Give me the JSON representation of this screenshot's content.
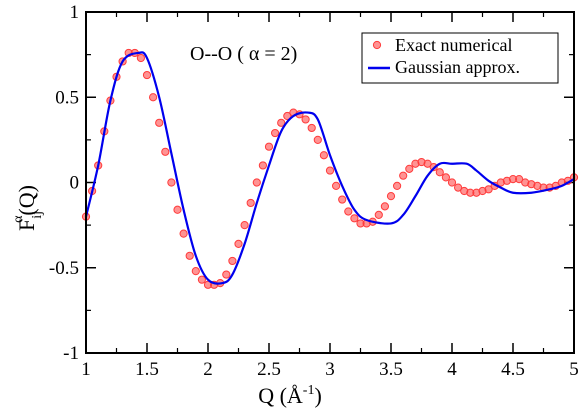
{
  "chart_data": {
    "type": "line",
    "annotation": "O--O ( α = 2)",
    "xlabel": "Q (Å-1)",
    "xlabel_parts": {
      "base": "Q (Å",
      "sup": "-1",
      "close": ")"
    },
    "ylabel": "Fijα(Q)",
    "ylabel_parts": {
      "base": "F",
      "sub": "ij",
      "sup": "α",
      "tail": "(Q)"
    },
    "xlim": [
      1,
      5
    ],
    "ylim": [
      -1,
      1
    ],
    "x_ticks": [
      1,
      1.5,
      2,
      2.5,
      3,
      3.5,
      4,
      4.5,
      5
    ],
    "x_tick_labels": [
      "1",
      "1.5",
      "2",
      "2.5",
      "3",
      "3.5",
      "4",
      "4.5",
      "5"
    ],
    "y_ticks": [
      -1,
      -0.5,
      0,
      0.5,
      1
    ],
    "y_tick_labels": [
      "-1",
      "-0.5",
      "0",
      "0.5",
      "1"
    ],
    "legend_position": "top-right",
    "colors": {
      "exact": "#ff3b3b",
      "gaussian": "#0000ee",
      "axis": "#000000"
    },
    "series": [
      {
        "name": "Exact numerical",
        "style": "markers",
        "x": [
          1.0,
          1.05,
          1.1,
          1.15,
          1.2,
          1.25,
          1.3,
          1.35,
          1.4,
          1.45,
          1.5,
          1.55,
          1.6,
          1.65,
          1.7,
          1.75,
          1.8,
          1.85,
          1.9,
          1.95,
          2.0,
          2.05,
          2.1,
          2.15,
          2.2,
          2.25,
          2.3,
          2.35,
          2.4,
          2.45,
          2.5,
          2.55,
          2.6,
          2.65,
          2.7,
          2.75,
          2.8,
          2.85,
          2.9,
          2.95,
          3.0,
          3.05,
          3.1,
          3.15,
          3.2,
          3.25,
          3.3,
          3.35,
          3.4,
          3.45,
          3.5,
          3.55,
          3.6,
          3.65,
          3.7,
          3.75,
          3.8,
          3.85,
          3.9,
          3.95,
          4.0,
          4.05,
          4.1,
          4.15,
          4.2,
          4.25,
          4.3,
          4.35,
          4.4,
          4.45,
          4.5,
          4.55,
          4.6,
          4.65,
          4.7,
          4.75,
          4.8,
          4.85,
          4.9,
          4.95,
          5.0
        ],
        "y": [
          -0.2,
          -0.05,
          0.1,
          0.3,
          0.48,
          0.62,
          0.71,
          0.76,
          0.76,
          0.73,
          0.63,
          0.5,
          0.35,
          0.18,
          0.0,
          -0.16,
          -0.3,
          -0.43,
          -0.52,
          -0.57,
          -0.6,
          -0.6,
          -0.59,
          -0.54,
          -0.46,
          -0.36,
          -0.25,
          -0.12,
          0.0,
          0.1,
          0.21,
          0.29,
          0.35,
          0.39,
          0.41,
          0.4,
          0.37,
          0.32,
          0.25,
          0.16,
          0.07,
          -0.02,
          -0.1,
          -0.17,
          -0.21,
          -0.24,
          -0.24,
          -0.23,
          -0.19,
          -0.14,
          -0.08,
          -0.02,
          0.04,
          0.08,
          0.11,
          0.12,
          0.11,
          0.09,
          0.06,
          0.03,
          0.0,
          -0.03,
          -0.05,
          -0.06,
          -0.06,
          -0.05,
          -0.04,
          -0.02,
          0.0,
          0.01,
          0.02,
          0.02,
          0.0,
          -0.01,
          -0.02,
          -0.03,
          -0.03,
          -0.02,
          0.0,
          0.01,
          0.03
        ]
      },
      {
        "name": "Gaussian approx.",
        "style": "line",
        "x": [
          1.0,
          1.1,
          1.2,
          1.3,
          1.43,
          1.5,
          1.6,
          1.7,
          1.8,
          1.9,
          2.0,
          2.12,
          2.2,
          2.3,
          2.4,
          2.5,
          2.6,
          2.7,
          2.82,
          2.9,
          3.0,
          3.1,
          3.2,
          3.3,
          3.5,
          3.6,
          3.7,
          3.8,
          3.9,
          4.0,
          4.12,
          4.2,
          4.3,
          4.4,
          4.5,
          4.65,
          4.8,
          4.9,
          5.0
        ],
        "y": [
          -0.2,
          0.1,
          0.48,
          0.71,
          0.76,
          0.73,
          0.5,
          0.17,
          -0.16,
          -0.43,
          -0.57,
          -0.59,
          -0.54,
          -0.36,
          -0.12,
          0.1,
          0.3,
          0.39,
          0.41,
          0.37,
          0.16,
          -0.02,
          -0.16,
          -0.22,
          -0.24,
          -0.19,
          -0.08,
          0.04,
          0.11,
          0.11,
          0.11,
          0.07,
          0.01,
          -0.03,
          -0.06,
          -0.06,
          -0.04,
          -0.02,
          0.02
        ]
      }
    ]
  }
}
